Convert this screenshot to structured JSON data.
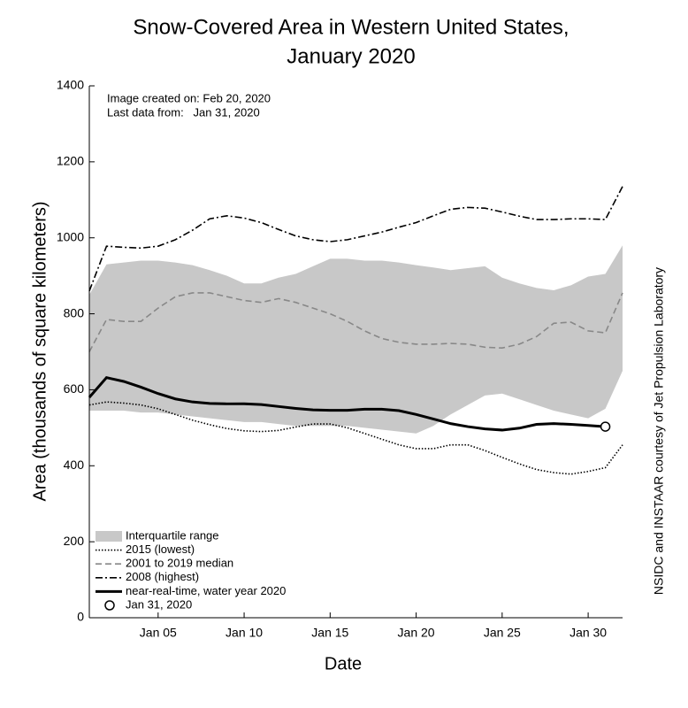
{
  "chart_data": {
    "type": "line",
    "title": [
      "Snow-Covered Area in Western United States,",
      "January 2020"
    ],
    "annotations": [
      "Image created on: Feb 20, 2020",
      "Last data from:   Jan 31, 2020"
    ],
    "credit": "NSIDC and INSTAAR courtesy of Jet Propulsion Laboratory",
    "x_label": "Date",
    "y_label": "Area (thousands of square kilometers)",
    "x": [
      1,
      2,
      3,
      4,
      5,
      6,
      7,
      8,
      9,
      10,
      11,
      12,
      13,
      14,
      15,
      16,
      17,
      18,
      19,
      20,
      21,
      22,
      23,
      24,
      25,
      26,
      27,
      28,
      29,
      30,
      31,
      32
    ],
    "xlim": [
      1,
      32
    ],
    "xticks": [
      {
        "value": 5,
        "label": "Jan 05"
      },
      {
        "value": 10,
        "label": "Jan 10"
      },
      {
        "value": 15,
        "label": "Jan 15"
      },
      {
        "value": 20,
        "label": "Jan 20"
      },
      {
        "value": 25,
        "label": "Jan 25"
      },
      {
        "value": 30,
        "label": "Jan 30"
      }
    ],
    "ylim": [
      0,
      1400
    ],
    "yticks": [
      0,
      200,
      400,
      600,
      800,
      1000,
      1200,
      1400
    ],
    "series": [
      {
        "name": "Interquartile range",
        "color": "#c8c8c8",
        "style": "band",
        "lower": [
          545,
          545,
          545,
          540,
          540,
          535,
          530,
          525,
          520,
          515,
          515,
          510,
          505,
          505,
          505,
          505,
          500,
          495,
          490,
          485,
          505,
          535,
          560,
          585,
          590,
          575,
          560,
          545,
          535,
          525,
          550,
          650
        ],
        "upper": [
          850,
          930,
          935,
          940,
          940,
          935,
          928,
          915,
          900,
          880,
          880,
          895,
          905,
          925,
          945,
          945,
          940,
          940,
          935,
          928,
          922,
          915,
          920,
          925,
          895,
          880,
          868,
          862,
          875,
          898,
          905,
          980
        ]
      },
      {
        "name": "2015 (lowest)",
        "color": "#000000",
        "style": "dotted",
        "values": [
          560,
          568,
          565,
          560,
          550,
          535,
          520,
          508,
          498,
          492,
          490,
          493,
          502,
          510,
          510,
          500,
          485,
          470,
          455,
          445,
          445,
          455,
          455,
          440,
          422,
          405,
          390,
          382,
          378,
          385,
          395,
          455
        ]
      },
      {
        "name": "2001 to 2019 median",
        "color": "#888888",
        "style": "dashed",
        "values": [
          700,
          785,
          780,
          780,
          815,
          845,
          855,
          855,
          845,
          835,
          830,
          840,
          830,
          815,
          800,
          780,
          755,
          735,
          725,
          720,
          720,
          722,
          720,
          712,
          710,
          720,
          740,
          775,
          778,
          755,
          750,
          855
        ]
      },
      {
        "name": "2008 (highest)",
        "color": "#000000",
        "style": "dashdot",
        "values": [
          860,
          978,
          975,
          973,
          978,
          995,
          1020,
          1050,
          1058,
          1052,
          1040,
          1022,
          1005,
          995,
          990,
          995,
          1005,
          1015,
          1028,
          1040,
          1058,
          1075,
          1080,
          1078,
          1068,
          1057,
          1048,
          1048,
          1050,
          1050,
          1048,
          1135
        ]
      },
      {
        "name": "near-real-time, water year 2020",
        "color": "#000000",
        "style": "solid",
        "values": [
          580,
          632,
          622,
          607,
          590,
          576,
          568,
          564,
          563,
          563,
          561,
          556,
          551,
          547,
          546,
          546,
          549,
          549,
          545,
          535,
          523,
          511,
          503,
          497,
          494,
          499,
          509,
          511,
          509,
          506,
          503,
          null
        ]
      }
    ],
    "marker": {
      "name": "Jan 31, 2020",
      "x": 31,
      "value": 503
    }
  }
}
